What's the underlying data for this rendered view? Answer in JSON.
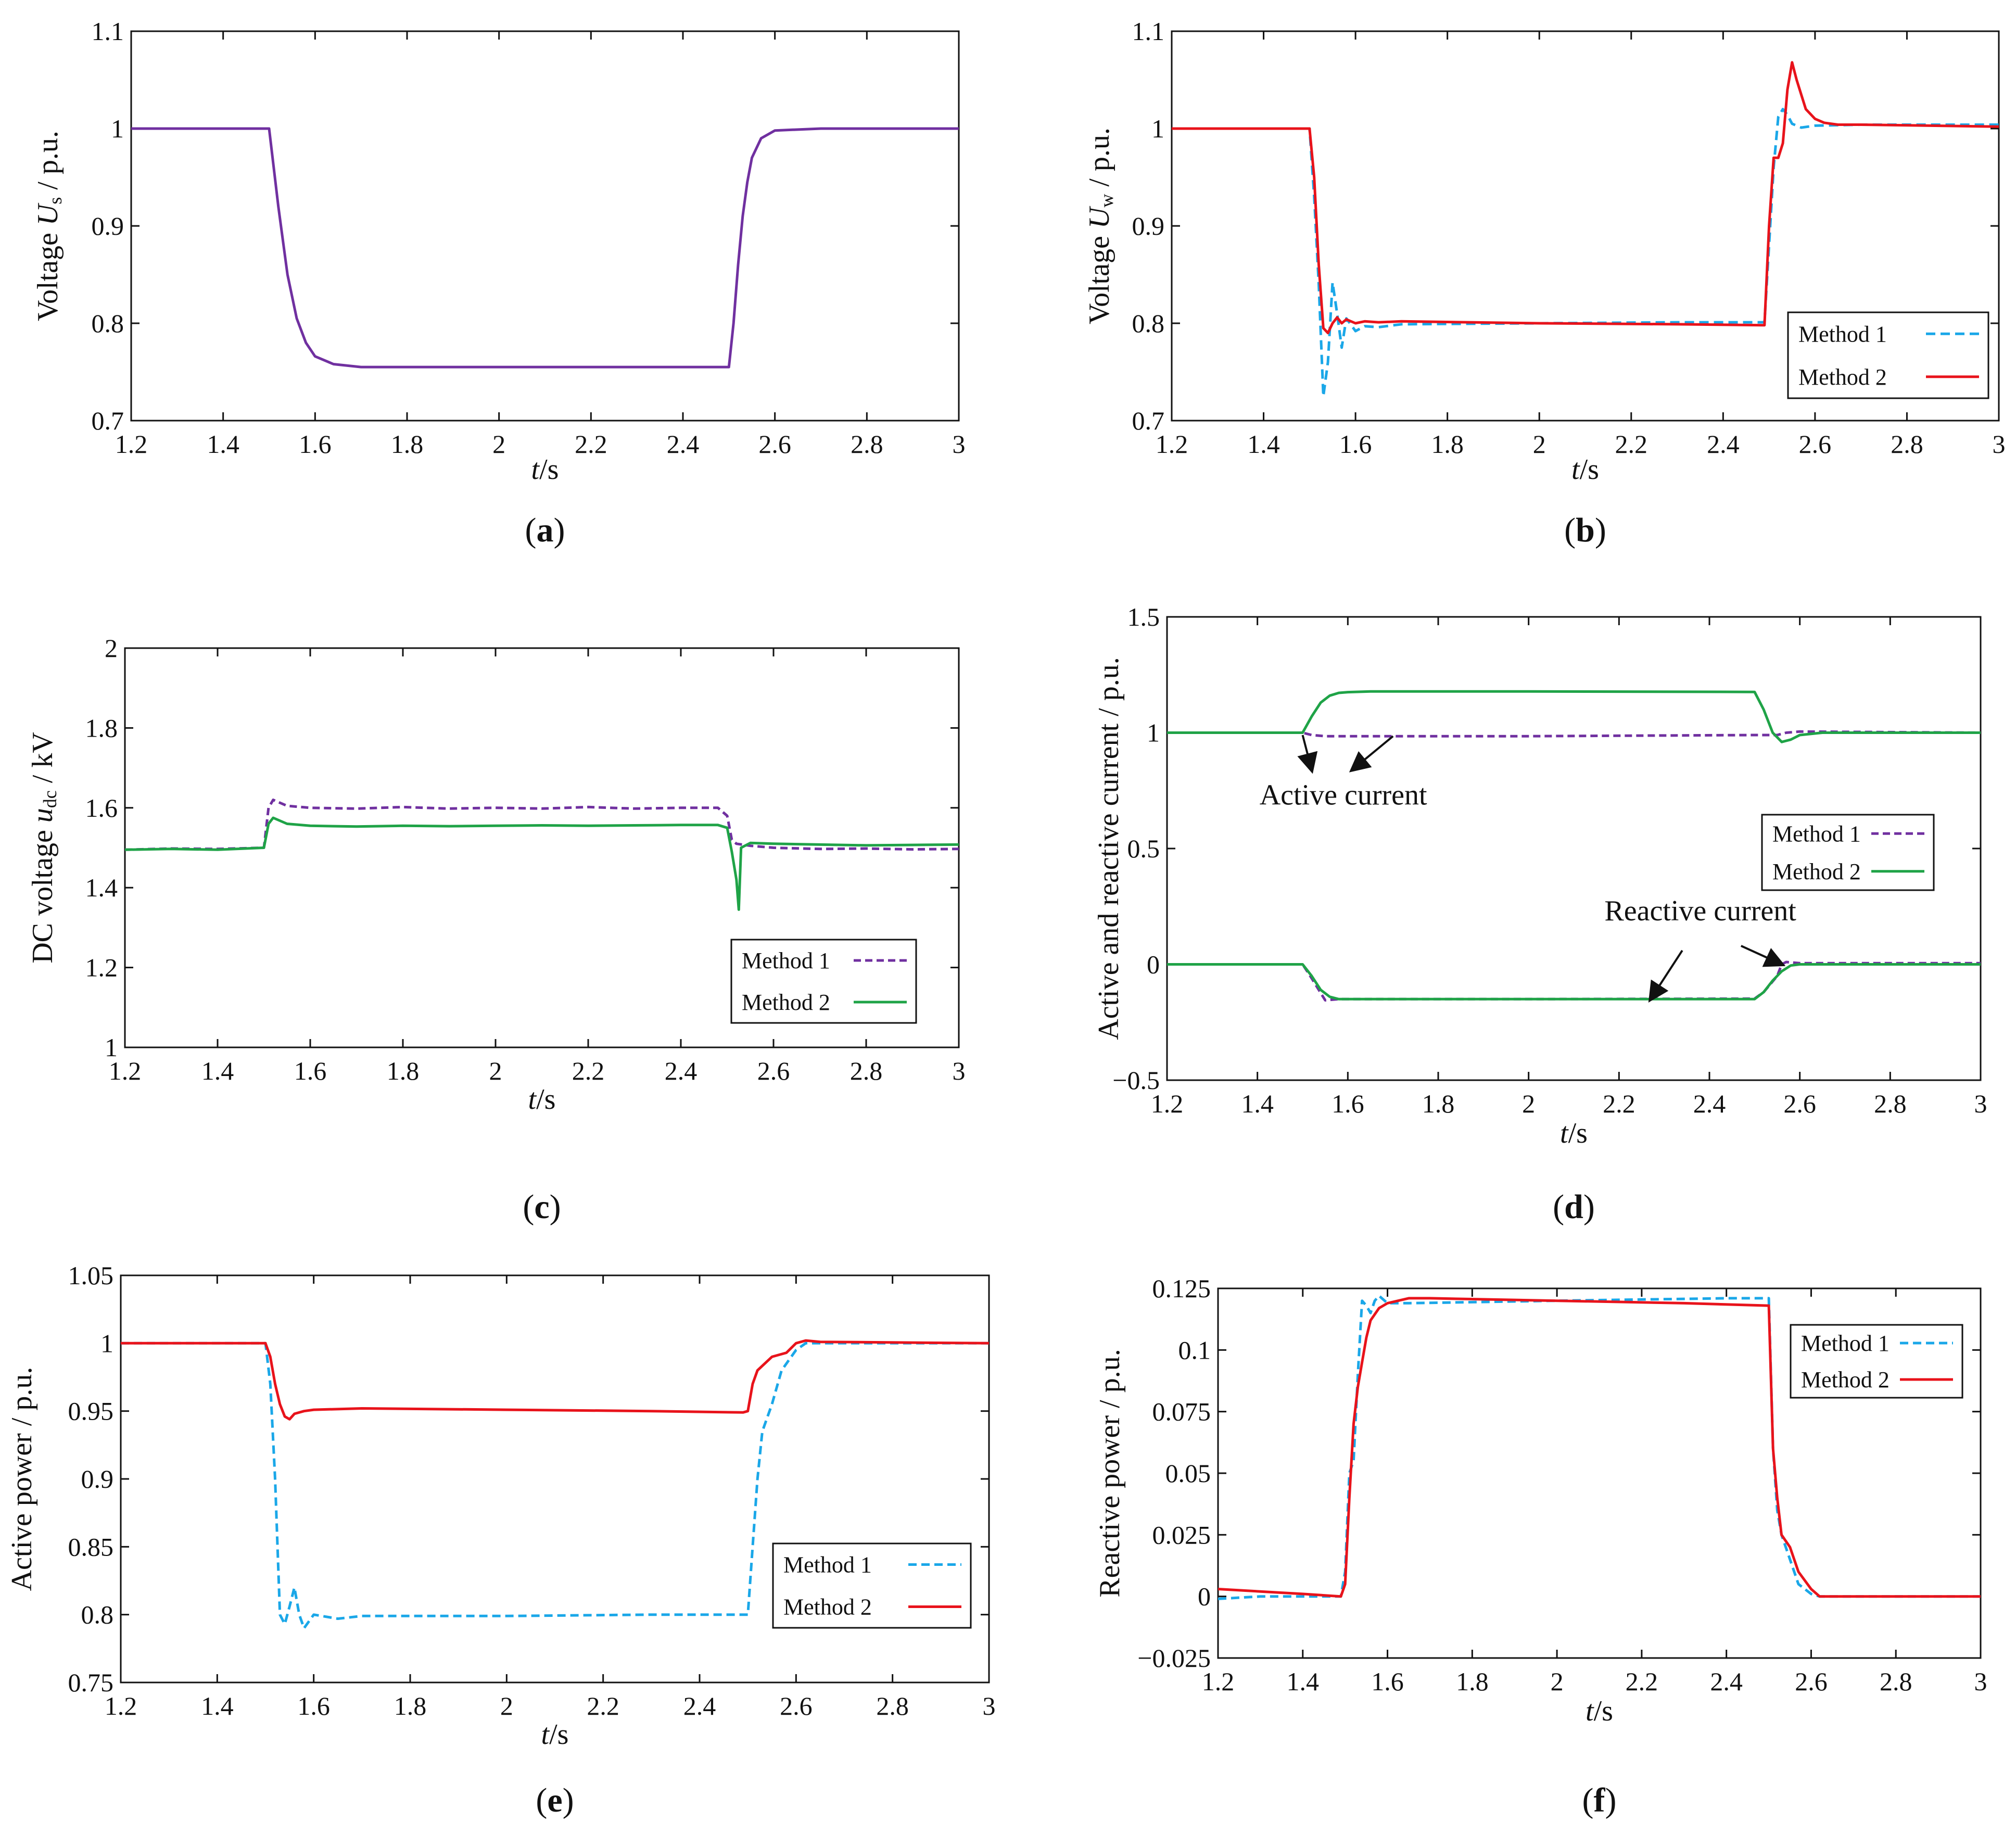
{
  "figure": {
    "panels": [
      {
        "id": "a",
        "caption": "a",
        "ylabel_prefix": "Voltage ",
        "ylabel_var": "U",
        "ylabel_sub": "s",
        "ylabel_suffix": " / p.u.",
        "xlabel_var": "t",
        "xlabel_unit": "/s",
        "x_ticks": [
          "1.2",
          "1.4",
          "1.6",
          "1.8",
          "2",
          "2.2",
          "2.4",
          "2.6",
          "2.8",
          "3"
        ],
        "y_ticks": [
          "0.7",
          "0.8",
          "0.9",
          "1",
          "1.1"
        ]
      },
      {
        "id": "b",
        "caption": "b",
        "ylabel_prefix": "Voltage ",
        "ylabel_var": "U",
        "ylabel_sub": "w",
        "ylabel_suffix": " / p.u.",
        "xlabel_var": "t",
        "xlabel_unit": "/s",
        "x_ticks": [
          "1.2",
          "1.4",
          "1.6",
          "1.8",
          "2",
          "2.2",
          "2.4",
          "2.6",
          "2.8",
          "3"
        ],
        "y_ticks": [
          "0.7",
          "0.8",
          "0.9",
          "1",
          "1.1"
        ],
        "legend": [
          "Method 1",
          "Method 2"
        ]
      },
      {
        "id": "c",
        "caption": "c",
        "ylabel_prefix": "DC voltage ",
        "ylabel_var": "u",
        "ylabel_sub": "dc",
        "ylabel_suffix": " / kV",
        "xlabel_var": "t",
        "xlabel_unit": "/s",
        "x_ticks": [
          "1.2",
          "1.4",
          "1.6",
          "1.8",
          "2",
          "2.2",
          "2.4",
          "2.6",
          "2.8",
          "3"
        ],
        "y_ticks": [
          "1",
          "1.2",
          "1.4",
          "1.6",
          "1.8",
          "2"
        ],
        "legend": [
          "Method 1",
          "Method 2"
        ]
      },
      {
        "id": "d",
        "caption": "d",
        "ylabel_prefix": "Active and reactive current / p.u.",
        "ylabel_var": "",
        "ylabel_sub": "",
        "ylabel_suffix": "",
        "xlabel_var": "t",
        "xlabel_unit": "/s",
        "x_ticks": [
          "1.2",
          "1.4",
          "1.6",
          "1.8",
          "2",
          "2.2",
          "2.4",
          "2.6",
          "2.8",
          "3"
        ],
        "y_ticks": [
          "−0.5",
          "0",
          "0.5",
          "1",
          "1.5"
        ],
        "legend": [
          "Method 1",
          "Method 2"
        ],
        "annotations": [
          "Active current",
          "Reactive current"
        ]
      },
      {
        "id": "e",
        "caption": "e",
        "ylabel_prefix": "Active power / p.u.",
        "ylabel_var": "",
        "ylabel_sub": "",
        "ylabel_suffix": "",
        "xlabel_var": "t",
        "xlabel_unit": "/s",
        "x_ticks": [
          "1.2",
          "1.4",
          "1.6",
          "1.8",
          "2",
          "2.2",
          "2.4",
          "2.6",
          "2.8",
          "3"
        ],
        "y_ticks": [
          "0.75",
          "0.8",
          "0.85",
          "0.9",
          "0.95",
          "1",
          "1.05"
        ],
        "legend": [
          "Method 1",
          "Method 2"
        ]
      },
      {
        "id": "f",
        "caption": "f",
        "ylabel_prefix": "Reactive power / p.u.",
        "ylabel_var": "",
        "ylabel_sub": "",
        "ylabel_suffix": "",
        "xlabel_var": "t",
        "xlabel_unit": "/s",
        "x_ticks": [
          "1.2",
          "1.4",
          "1.6",
          "1.8",
          "2",
          "2.2",
          "2.4",
          "2.6",
          "2.8",
          "3"
        ],
        "y_ticks": [
          "−0.025",
          "0",
          "0.025",
          "0.05",
          "0.075",
          "0.1",
          "0.125"
        ],
        "legend": [
          "Method 1",
          "Method 2"
        ]
      }
    ]
  },
  "chart_data": [
    {
      "panel": "a",
      "type": "line",
      "xlabel": "t/s",
      "ylabel": "Voltage Us / p.u.",
      "xlim": [
        1.2,
        3
      ],
      "ylim": [
        0.7,
        1.1
      ],
      "series": [
        {
          "name": "Us",
          "color": "#7030a0",
          "dash": "",
          "x": [
            1.2,
            1.5,
            1.52,
            1.54,
            1.56,
            1.58,
            1.6,
            1.64,
            1.7,
            2.0,
            2.3,
            2.5,
            2.51,
            2.52,
            2.53,
            2.54,
            2.55,
            2.57,
            2.6,
            2.7,
            3.0
          ],
          "y": [
            1.0,
            1.0,
            0.92,
            0.85,
            0.805,
            0.78,
            0.766,
            0.758,
            0.755,
            0.755,
            0.755,
            0.755,
            0.8,
            0.86,
            0.91,
            0.945,
            0.97,
            0.99,
            0.998,
            1.0,
            1.0
          ]
        }
      ]
    },
    {
      "panel": "b",
      "type": "line",
      "xlabel": "t/s",
      "ylabel": "Voltage Uw / p.u.",
      "xlim": [
        1.2,
        3
      ],
      "ylim": [
        0.7,
        1.1
      ],
      "series": [
        {
          "name": "Method 1",
          "color": "#1aa7e8",
          "dash": "18,10",
          "x": [
            1.2,
            1.5,
            1.51,
            1.52,
            1.53,
            1.54,
            1.55,
            1.56,
            1.57,
            1.58,
            1.6,
            1.62,
            1.65,
            1.7,
            2.0,
            2.3,
            2.49,
            2.5,
            2.51,
            2.52,
            2.53,
            2.54,
            2.55,
            2.57,
            2.6,
            2.7,
            3.0
          ],
          "y": [
            1.0,
            1.0,
            0.93,
            0.84,
            0.725,
            0.76,
            0.842,
            0.81,
            0.775,
            0.805,
            0.792,
            0.797,
            0.796,
            0.799,
            0.8,
            0.801,
            0.801,
            0.88,
            0.96,
            1.012,
            1.02,
            1.014,
            1.005,
            1.001,
            1.003,
            1.004,
            1.004
          ]
        },
        {
          "name": "Method 2",
          "color": "#e8131b",
          "dash": "",
          "x": [
            1.2,
            1.5,
            1.51,
            1.52,
            1.53,
            1.54,
            1.55,
            1.56,
            1.57,
            1.58,
            1.6,
            1.62,
            1.65,
            1.7,
            2.0,
            2.3,
            2.49,
            2.5,
            2.51,
            2.52,
            2.53,
            2.54,
            2.55,
            2.56,
            2.57,
            2.58,
            2.6,
            2.62,
            2.65,
            2.7,
            3.0
          ],
          "y": [
            1.0,
            1.0,
            0.95,
            0.86,
            0.795,
            0.79,
            0.8,
            0.806,
            0.8,
            0.804,
            0.8,
            0.802,
            0.801,
            0.802,
            0.8,
            0.799,
            0.798,
            0.9,
            0.97,
            0.97,
            0.985,
            1.04,
            1.068,
            1.05,
            1.035,
            1.02,
            1.01,
            1.006,
            1.004,
            1.004,
            1.002
          ]
        }
      ],
      "legend_position": "lower-right"
    },
    {
      "panel": "c",
      "type": "line",
      "xlabel": "t/s",
      "ylabel": "DC voltage udc / kV",
      "xlim": [
        1.2,
        3
      ],
      "ylim": [
        1,
        2
      ],
      "series": [
        {
          "name": "Method 1",
          "color": "#7030a0",
          "dash": "14,8",
          "x": [
            1.2,
            1.3,
            1.4,
            1.5,
            1.51,
            1.52,
            1.55,
            1.6,
            1.7,
            1.8,
            1.9,
            2.0,
            2.1,
            2.2,
            2.3,
            2.4,
            2.48,
            2.5,
            2.51,
            2.52,
            2.55,
            2.6,
            2.7,
            2.8,
            2.9,
            3.0
          ],
          "y": [
            1.495,
            1.498,
            1.497,
            1.5,
            1.6,
            1.62,
            1.605,
            1.6,
            1.598,
            1.602,
            1.598,
            1.6,
            1.598,
            1.602,
            1.598,
            1.6,
            1.6,
            1.58,
            1.52,
            1.51,
            1.505,
            1.5,
            1.497,
            1.498,
            1.496,
            1.497
          ]
        },
        {
          "name": "Method 2",
          "color": "#1fa347",
          "dash": "",
          "x": [
            1.2,
            1.3,
            1.4,
            1.5,
            1.51,
            1.52,
            1.55,
            1.6,
            1.7,
            1.8,
            1.9,
            2.0,
            2.1,
            2.2,
            2.3,
            2.4,
            2.48,
            2.5,
            2.51,
            2.52,
            2.525,
            2.53,
            2.55,
            2.6,
            2.7,
            2.8,
            2.9,
            3.0
          ],
          "y": [
            1.495,
            1.497,
            1.495,
            1.5,
            1.56,
            1.575,
            1.56,
            1.555,
            1.553,
            1.555,
            1.554,
            1.555,
            1.556,
            1.555,
            1.556,
            1.557,
            1.557,
            1.55,
            1.49,
            1.42,
            1.345,
            1.5,
            1.512,
            1.51,
            1.508,
            1.506,
            1.507,
            1.508
          ]
        }
      ],
      "legend_position": "lower-right"
    },
    {
      "panel": "d",
      "type": "line",
      "xlabel": "t/s",
      "ylabel": "Active and reactive current / p.u.",
      "xlim": [
        1.2,
        3
      ],
      "ylim": [
        -0.5,
        1.5
      ],
      "series": [
        {
          "name": "Method 1 (active)",
          "color": "#7030a0",
          "dash": "14,8",
          "x": [
            1.2,
            1.5,
            1.52,
            1.55,
            1.6,
            2.0,
            2.5,
            2.55,
            2.57,
            2.6,
            3.0
          ],
          "y": [
            1.0,
            1.0,
            0.99,
            0.985,
            0.985,
            0.985,
            0.99,
            0.99,
            1.0,
            1.005,
            1.0
          ]
        },
        {
          "name": "Method 2 (active)",
          "color": "#1fa347",
          "dash": "",
          "x": [
            1.2,
            1.5,
            1.52,
            1.54,
            1.56,
            1.58,
            1.6,
            1.65,
            2.0,
            2.5,
            2.52,
            2.54,
            2.56,
            2.58,
            2.6,
            2.65,
            3.0
          ],
          "y": [
            1.0,
            1.0,
            1.07,
            1.13,
            1.16,
            1.172,
            1.175,
            1.178,
            1.178,
            1.176,
            1.1,
            1.0,
            0.96,
            0.97,
            0.99,
            1.0,
            1.0
          ]
        },
        {
          "name": "Method 1 (reactive)",
          "color": "#7030a0",
          "dash": "14,8",
          "x": [
            1.2,
            1.5,
            1.52,
            1.55,
            1.58,
            1.6,
            2.0,
            2.5,
            2.52,
            2.55,
            2.56,
            2.57,
            2.6,
            3.0
          ],
          "y": [
            0.0,
            0.0,
            -0.06,
            -0.155,
            -0.15,
            -0.15,
            -0.15,
            -0.148,
            -0.12,
            -0.05,
            0.0,
            0.01,
            0.005,
            0.005
          ]
        },
        {
          "name": "Method 2 (reactive)",
          "color": "#1fa347",
          "dash": "",
          "x": [
            1.2,
            1.5,
            1.52,
            1.54,
            1.56,
            1.58,
            1.6,
            2.0,
            2.5,
            2.52,
            2.54,
            2.56,
            2.58,
            2.6,
            3.0
          ],
          "y": [
            0.0,
            0.0,
            -0.05,
            -0.11,
            -0.14,
            -0.15,
            -0.15,
            -0.15,
            -0.15,
            -0.12,
            -0.07,
            -0.03,
            -0.005,
            0.0,
            0.0
          ]
        }
      ],
      "legend_position": "right",
      "annotations": [
        {
          "text": "Active current",
          "at": [
            1.59,
            0.69
          ]
        },
        {
          "text": "Reactive current",
          "at": [
            2.38,
            0.19
          ]
        }
      ]
    },
    {
      "panel": "e",
      "type": "line",
      "xlabel": "t/s",
      "ylabel": "Active power / p.u.",
      "xlim": [
        1.2,
        3
      ],
      "ylim": [
        0.75,
        1.05
      ],
      "series": [
        {
          "name": "Method 1",
          "color": "#1aa7e8",
          "dash": "16,9",
          "x": [
            1.2,
            1.5,
            1.51,
            1.52,
            1.53,
            1.54,
            1.55,
            1.56,
            1.57,
            1.58,
            1.6,
            1.65,
            1.7,
            2.0,
            2.3,
            2.5,
            2.51,
            2.52,
            2.53,
            2.55,
            2.57,
            2.6,
            2.62,
            2.65,
            3.0
          ],
          "y": [
            1.0,
            1.0,
            0.97,
            0.9,
            0.8,
            0.793,
            0.806,
            0.82,
            0.8,
            0.79,
            0.8,
            0.797,
            0.799,
            0.799,
            0.8,
            0.8,
            0.85,
            0.9,
            0.935,
            0.955,
            0.98,
            0.995,
            1.0,
            1.0,
            1.0
          ]
        },
        {
          "name": "Method 2",
          "color": "#e8131b",
          "dash": "",
          "x": [
            1.2,
            1.5,
            1.51,
            1.52,
            1.53,
            1.54,
            1.55,
            1.56,
            1.58,
            1.6,
            1.7,
            2.0,
            2.3,
            2.49,
            2.5,
            2.51,
            2.52,
            2.55,
            2.58,
            2.6,
            2.62,
            2.65,
            3.0
          ],
          "y": [
            1.0,
            1.0,
            0.99,
            0.97,
            0.955,
            0.946,
            0.944,
            0.948,
            0.95,
            0.951,
            0.952,
            0.951,
            0.95,
            0.949,
            0.95,
            0.97,
            0.98,
            0.99,
            0.993,
            1.0,
            1.002,
            1.001,
            1.0
          ]
        }
      ],
      "legend_position": "lower-right"
    },
    {
      "panel": "f",
      "type": "line",
      "xlabel": "t/s",
      "ylabel": "Reactive power / p.u.",
      "xlim": [
        1.2,
        3
      ],
      "ylim": [
        -0.025,
        0.125
      ],
      "series": [
        {
          "name": "Method 1",
          "color": "#1aa7e8",
          "dash": "16,9",
          "x": [
            1.2,
            1.3,
            1.4,
            1.49,
            1.5,
            1.51,
            1.52,
            1.53,
            1.54,
            1.55,
            1.56,
            1.57,
            1.58,
            1.6,
            1.65,
            2.0,
            2.4,
            2.5,
            2.51,
            2.52,
            2.53,
            2.55,
            2.57,
            2.6,
            2.62,
            2.65,
            3.0
          ],
          "y": [
            -0.001,
            0.0,
            0.0,
            0.0,
            0.01,
            0.05,
            0.055,
            0.09,
            0.12,
            0.118,
            0.115,
            0.12,
            0.122,
            0.119,
            0.119,
            0.12,
            0.121,
            0.121,
            0.06,
            0.035,
            0.025,
            0.015,
            0.005,
            0.001,
            0.0,
            0.0,
            0.0
          ]
        },
        {
          "name": "Method 2",
          "color": "#e8131b",
          "dash": "",
          "x": [
            1.2,
            1.3,
            1.4,
            1.49,
            1.5,
            1.51,
            1.52,
            1.53,
            1.54,
            1.55,
            1.56,
            1.58,
            1.6,
            1.65,
            1.7,
            2.0,
            2.3,
            2.5,
            2.51,
            2.52,
            2.53,
            2.55,
            2.57,
            2.6,
            2.62,
            2.65,
            3.0
          ],
          "y": [
            0.003,
            0.002,
            0.001,
            0.0,
            0.005,
            0.04,
            0.07,
            0.085,
            0.095,
            0.105,
            0.112,
            0.117,
            0.119,
            0.121,
            0.121,
            0.12,
            0.119,
            0.118,
            0.06,
            0.04,
            0.025,
            0.02,
            0.01,
            0.003,
            0.0,
            0.0,
            0.0
          ]
        }
      ],
      "legend_position": "upper-right"
    }
  ]
}
